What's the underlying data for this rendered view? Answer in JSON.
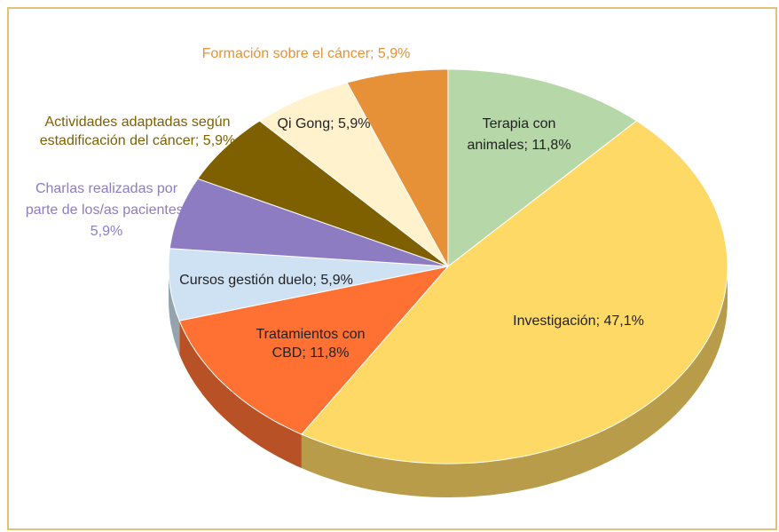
{
  "chart_data": {
    "type": "pie3d",
    "categories": [
      "Terapia con animales",
      "Investigación",
      "Tratamientos con CBD",
      "Cursos gestión duelo",
      "Charlas realizadas por parte de los/as pacientes",
      "Actividades adaptadas según estadificación del cáncer",
      "Qi Gong",
      "Formación sobre el cáncer"
    ],
    "values": [
      11.8,
      47.1,
      11.8,
      5.9,
      5.9,
      5.9,
      5.9,
      5.9
    ],
    "value_labels": [
      [
        "Terapia con",
        "animales; 11,8%"
      ],
      [
        "Investigación; 47,1%"
      ],
      [
        "Tratamientos con",
        "CBD; 11,8%"
      ],
      [
        "Cursos gestión duelo; 5,9%"
      ],
      [
        "Charlas realizadas por",
        "parte de los/as pacientes;",
        "5,9%"
      ],
      [
        "Actividades adaptadas según",
        "estadificación del cáncer; 5,9%"
      ],
      [
        "Qi Gong; 5,9%"
      ],
      [
        "Formación sobre el cáncer; 5,9%"
      ]
    ],
    "colors": [
      "#b6d7a8",
      "#ffd966",
      "#ff7033",
      "#cfe2f3",
      "#8e7cc3",
      "#7f6000",
      "#fff2cc",
      "#e69138"
    ]
  }
}
